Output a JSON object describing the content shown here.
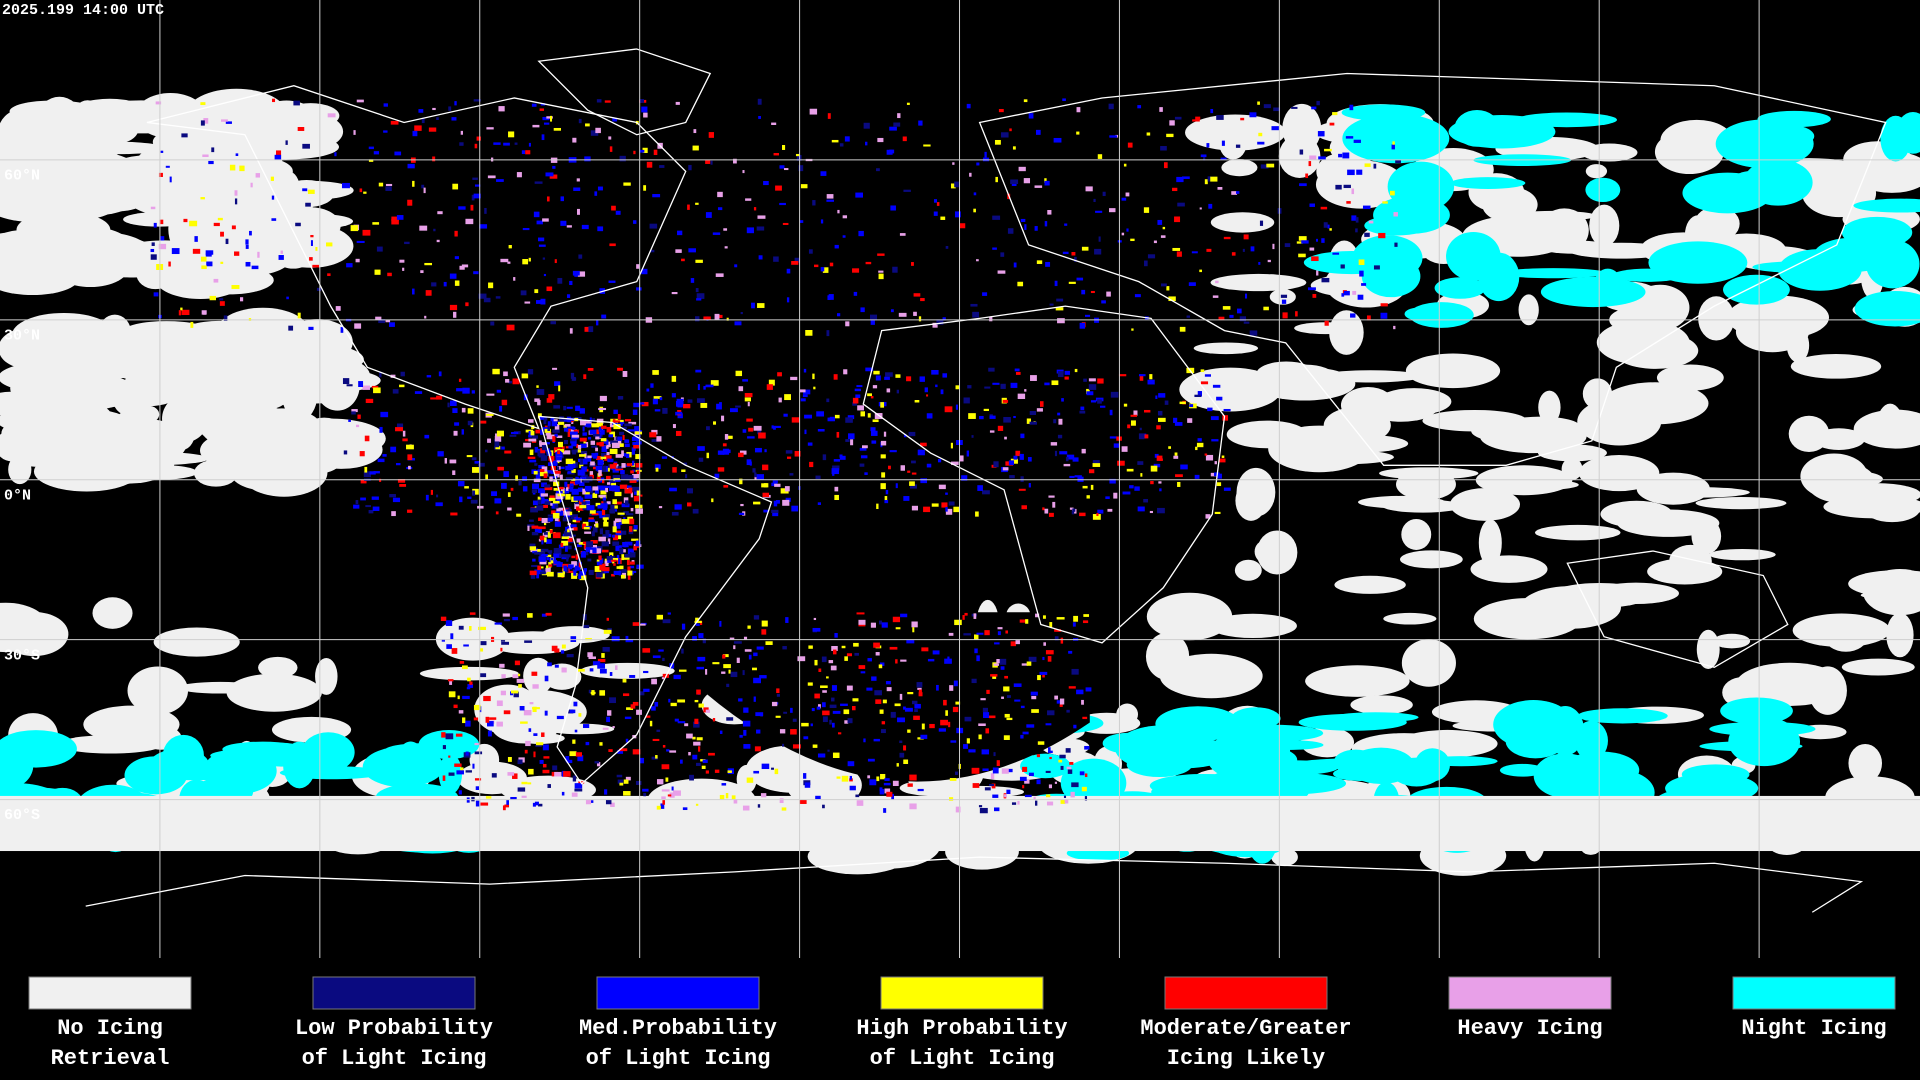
{
  "timestamp": "2025.199 14:00 UTC",
  "latitude_labels": [
    "60°N",
    "30°N",
    "0°N",
    "30°S",
    "60°S"
  ],
  "legend": [
    {
      "color": "#f0f0f0",
      "lines": [
        "No Icing",
        "Retrieval"
      ]
    },
    {
      "color": "#0a0a80",
      "lines": [
        "Low Probability",
        "of Light Icing"
      ]
    },
    {
      "color": "#0000ff",
      "lines": [
        "Med.Probability",
        "of Light Icing"
      ]
    },
    {
      "color": "#ffff00",
      "lines": [
        "High Probability",
        "of Light Icing"
      ]
    },
    {
      "color": "#ff0000",
      "lines": [
        "Moderate/Greater",
        "Icing Likely"
      ]
    },
    {
      "color": "#e8a0e8",
      "lines": [
        "Heavy Icing"
      ]
    },
    {
      "color": "#00ffff",
      "lines": [
        "Night Icing"
      ]
    }
  ]
}
